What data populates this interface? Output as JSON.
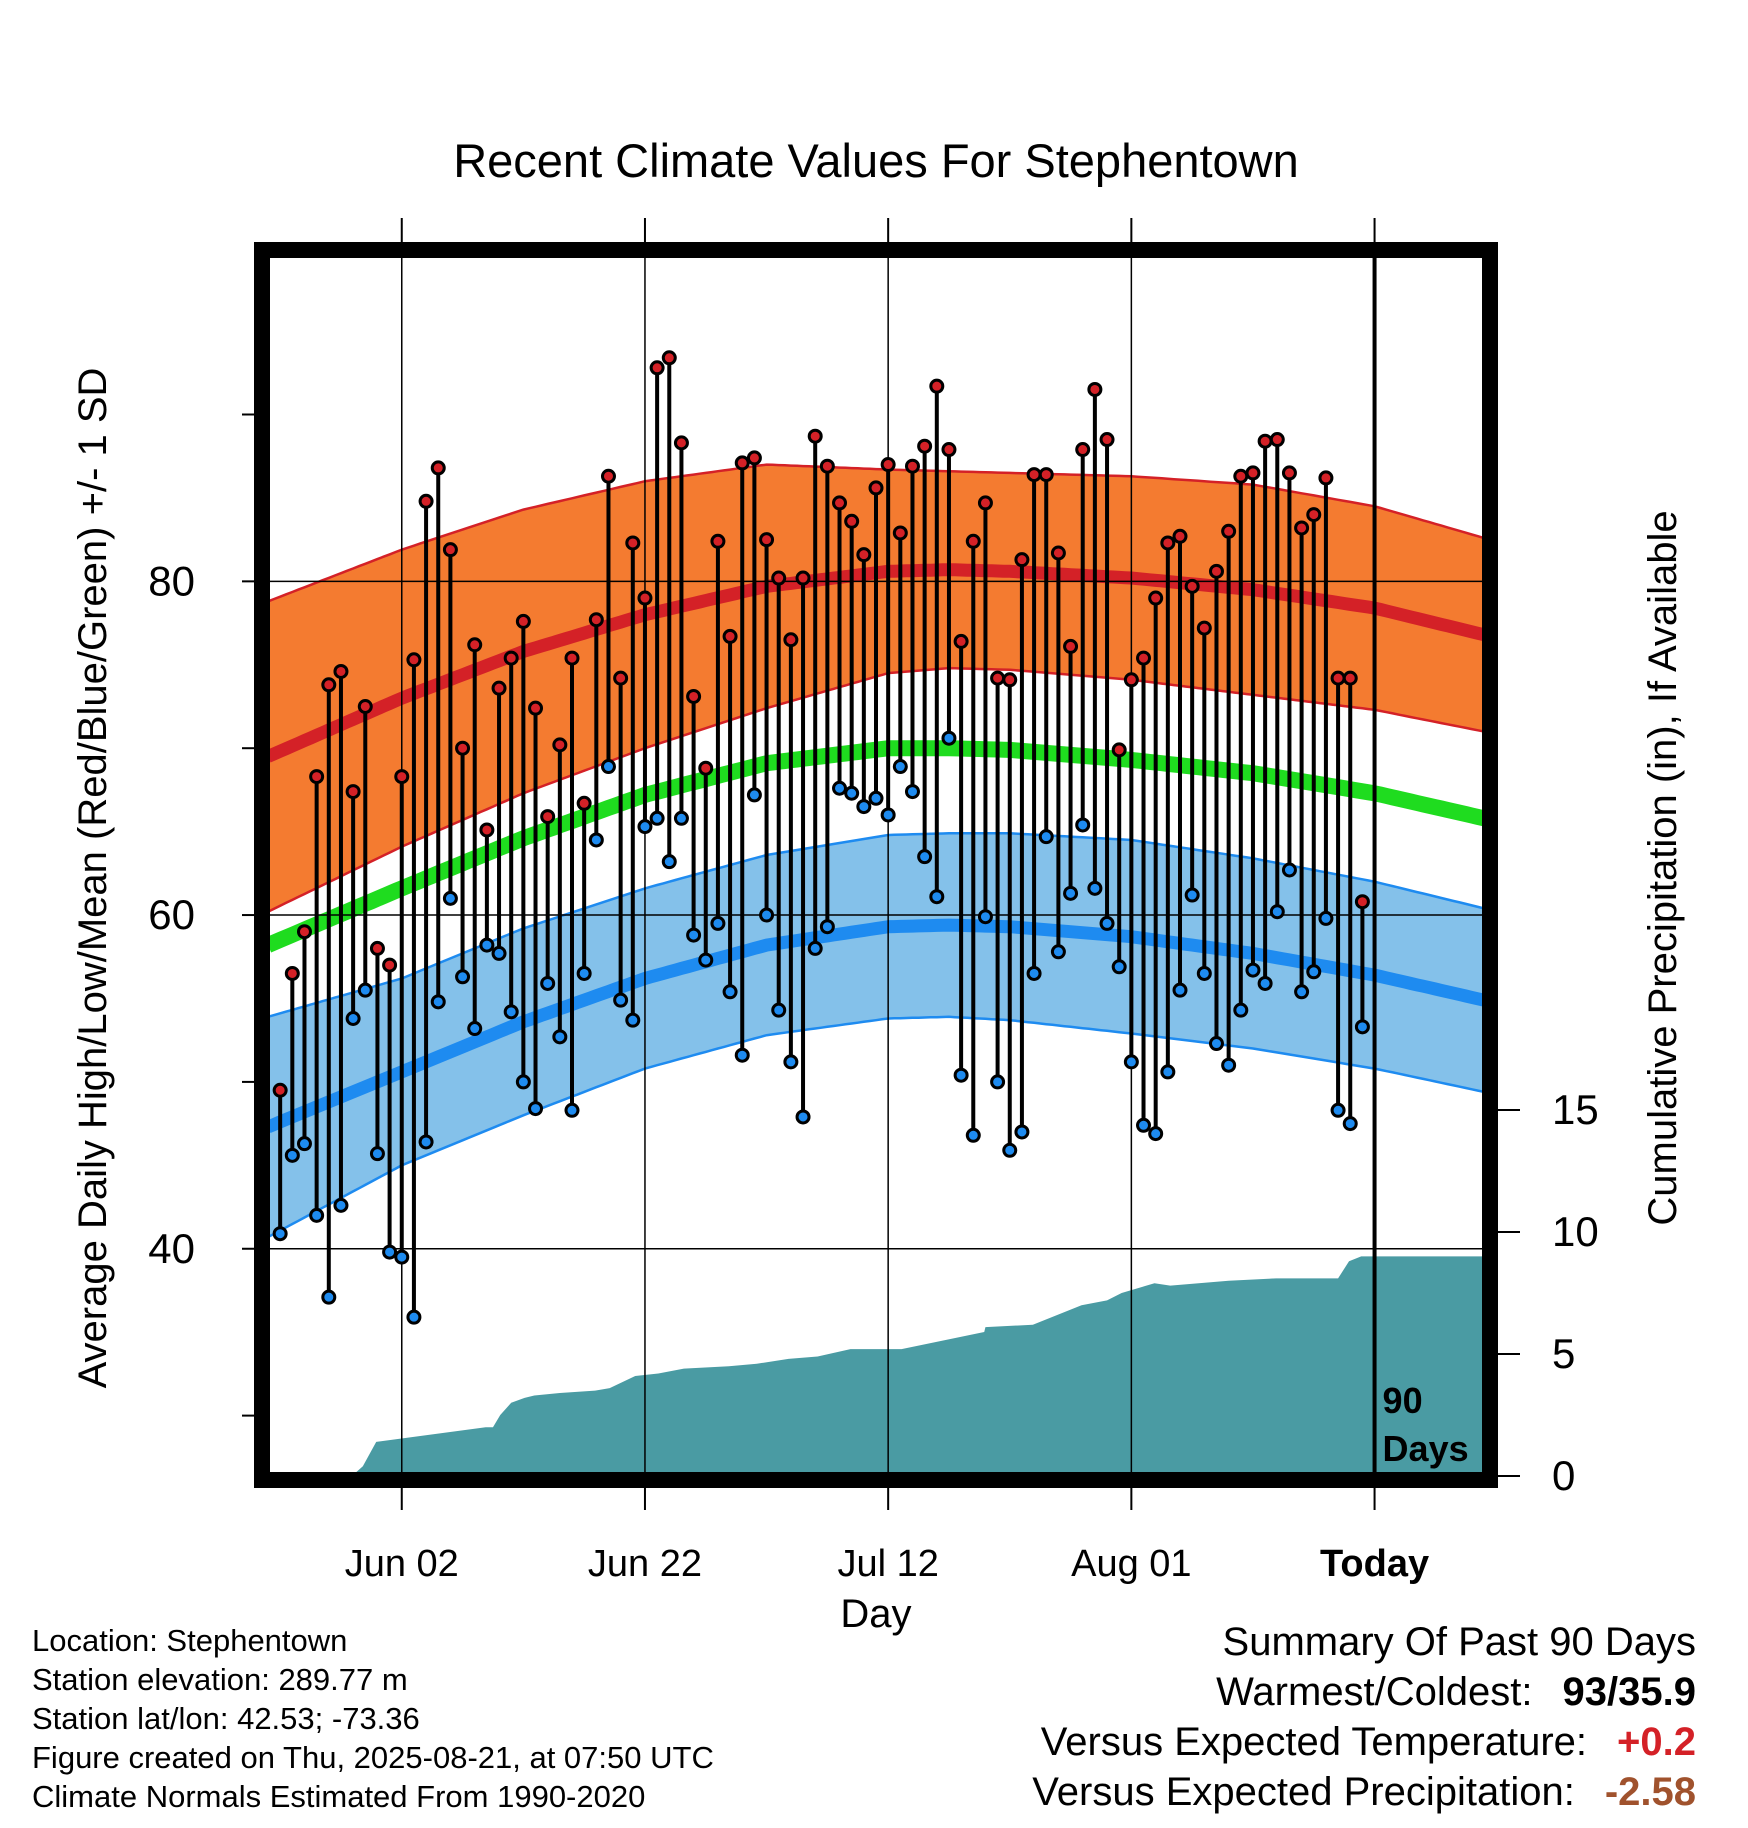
{
  "chart_data": {
    "type": "line",
    "title": "Recent Climate Values For Stephentown",
    "xlabel": "Day",
    "ylabel_left": "Average Daily High/Low/Mean (Red/Blue/Green) +/- 1 SD",
    "ylabel_right": "Cumulative Precipitation (in), If Available",
    "x_ticks": [
      {
        "day": 10,
        "label": "Jun 02"
      },
      {
        "day": 30,
        "label": "Jun 22"
      },
      {
        "day": 50,
        "label": "Jul 12"
      },
      {
        "day": 70,
        "label": "Aug 01"
      },
      {
        "day": 90,
        "label": "Today"
      }
    ],
    "y_left_ticks": [
      40,
      60,
      80
    ],
    "y_left_range": [
      26.5,
      99.5
    ],
    "y_right_ticks": [
      0,
      5,
      10,
      15
    ],
    "x_range": [
      -1,
      99
    ],
    "today_day": 90,
    "today_label": "90",
    "today_label2": "Days",
    "grid": true,
    "normals": {
      "days": [
        -1,
        10,
        20,
        30,
        40,
        50,
        55,
        60,
        70,
        80,
        90,
        99
      ],
      "high_mean": [
        69.5,
        73.0,
        75.8,
        78.0,
        79.7,
        80.6,
        80.7,
        80.6,
        80.2,
        79.5,
        78.4,
        76.8
      ],
      "high_sd": [
        9.3,
        8.9,
        8.5,
        8.0,
        7.3,
        6.1,
        5.9,
        5.9,
        6.1,
        6.3,
        6.1,
        5.8
      ],
      "low_mean": [
        47.3,
        50.6,
        53.6,
        56.2,
        58.2,
        59.3,
        59.4,
        59.3,
        58.7,
        57.7,
        56.4,
        54.9
      ],
      "low_sd": [
        6.6,
        5.6,
        5.6,
        5.4,
        5.4,
        5.5,
        5.5,
        5.6,
        5.8,
        5.7,
        5.6,
        5.5
      ],
      "mean": [
        58.2,
        61.6,
        64.6,
        67.2,
        69.1,
        70.0,
        70.0,
        69.9,
        69.3,
        68.5,
        67.3,
        65.8
      ]
    },
    "series": [
      {
        "name": "High",
        "values": [
          49.5,
          56.5,
          59,
          68.3,
          73.8,
          74.6,
          67.4,
          72.5,
          58,
          57,
          68.3,
          75.3,
          84.8,
          86.8,
          81.9,
          70,
          76.2,
          65.1,
          73.6,
          75.4,
          77.6,
          72.4,
          65.9,
          70.2,
          75.4,
          66.7,
          77.7,
          86.3,
          74.2,
          82.3,
          79,
          92.8,
          93.4,
          88.3,
          73.1,
          68.8,
          82.4,
          76.7,
          87.1,
          87.4,
          82.5,
          80.2,
          76.5,
          80.2,
          88.7,
          86.9,
          84.7,
          83.6,
          81.6,
          85.6,
          87,
          82.9,
          86.9,
          88.1,
          91.7,
          87.9,
          76.4,
          82.4,
          84.7,
          74.2,
          74.1,
          81.3,
          86.4,
          86.4,
          81.7,
          76.1,
          87.9,
          91.5,
          88.5,
          69.9,
          74.1,
          75.4,
          79,
          82.3,
          82.7,
          79.7,
          77.2,
          80.6,
          83,
          86.3,
          86.5,
          88.4,
          88.5,
          86.5,
          83.2,
          84,
          86.2,
          74.2,
          74.2,
          60.8
        ]
      },
      {
        "name": "Low",
        "values": [
          40.9,
          45.6,
          46.3,
          42,
          37.1,
          42.6,
          53.8,
          55.5,
          45.7,
          39.8,
          39.5,
          35.9,
          46.4,
          54.8,
          61,
          56.3,
          53.2,
          58.2,
          57.7,
          54.2,
          50,
          48.4,
          55.9,
          52.7,
          48.3,
          56.5,
          64.5,
          68.9,
          54.9,
          53.7,
          65.3,
          65.8,
          63.2,
          65.8,
          58.8,
          57.3,
          59.5,
          55.4,
          51.6,
          67.2,
          60,
          54.3,
          51.2,
          47.9,
          58,
          59.3,
          67.6,
          67.3,
          66.5,
          67,
          66,
          68.9,
          67.4,
          63.5,
          61.1,
          70.6,
          50.4,
          46.8,
          59.9,
          50,
          45.9,
          47,
          56.5,
          64.7,
          57.8,
          61.3,
          65.4,
          61.6,
          59.5,
          56.9,
          51.2,
          47.4,
          46.9,
          50.6,
          55.5,
          61.2,
          56.5,
          52.3,
          51,
          54.3,
          56.7,
          55.9,
          60.2,
          62.7,
          55.4,
          56.6,
          59.8,
          48.3,
          47.5,
          53.3
        ]
      },
      {
        "name": "Cumulative Precipitation",
        "days": [
          -1,
          5.9,
          6.8,
          7.9,
          16.9,
          17.5,
          18.1,
          19,
          20.1,
          20.9,
          23,
          25.9,
          27.1,
          29.2,
          31.1,
          33.2,
          36.9,
          39.2,
          41.8,
          44.2,
          46.9,
          51.1,
          57.9,
          58,
          61.9,
          65.9,
          68,
          69.2,
          71.9,
          73.2,
          78,
          81.9,
          87,
          87.9,
          88.9,
          99
        ],
        "values": [
          0,
          0,
          0.4,
          1.4,
          2.0,
          2.0,
          2.5,
          3.0,
          3.2,
          3.3,
          3.4,
          3.5,
          3.6,
          4.1,
          4.2,
          4.4,
          4.5,
          4.6,
          4.8,
          4.9,
          5.2,
          5.2,
          5.9,
          6.1,
          6.2,
          7.0,
          7.2,
          7.5,
          7.9,
          7.8,
          8.0,
          8.1,
          8.1,
          8.8,
          9.0,
          9.0
        ]
      }
    ],
    "colors": {
      "high_band": "#f47b30",
      "high_line": "#d42127",
      "low_band": "#84c1ea",
      "low_line": "#1e8bf0",
      "mean_line": "#1fdc1f",
      "precip": "#4a9ba3",
      "high_dot": "#d42127",
      "low_dot": "#1e8bf0"
    }
  },
  "footer": {
    "location": "Location: Stephentown",
    "elevation": "Station elevation: 289.77 m",
    "latlon": "Station lat/lon: 42.53; -73.36",
    "created": "Figure created on Thu, 2025-08-21, at 07:50 UTC",
    "normals": "Climate Normals Estimated From 1990-2020"
  },
  "summary": {
    "title": "Summary Of Past 90 Days",
    "warmest_label": "Warmest/Coldest:",
    "warmest_value": "93/35.9",
    "temp_label": "Versus Expected Temperature:",
    "temp_value": "+0.2",
    "temp_color": "#d42127",
    "precip_label": "Versus Expected Precipitation:",
    "precip_value": "-2.58",
    "precip_color": "#a0522d"
  }
}
